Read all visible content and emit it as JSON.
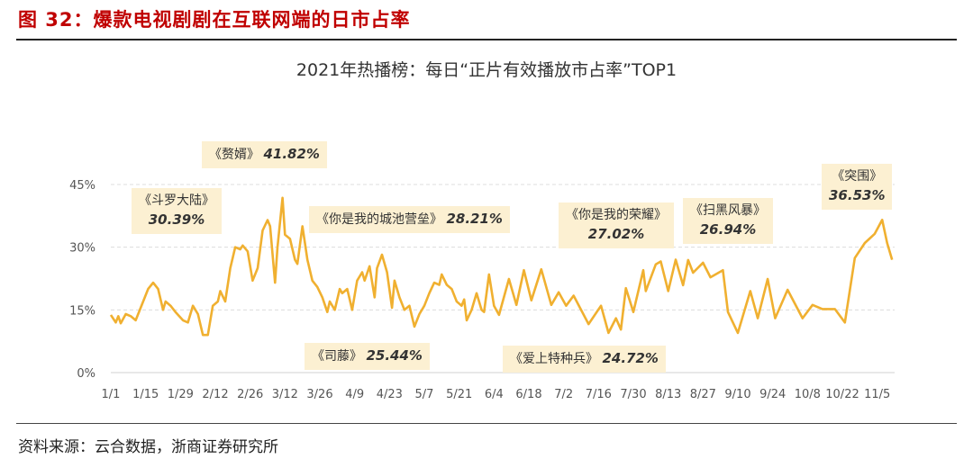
{
  "figure_title": "图 32：爆款电视剧剧在互联网端的日市占率",
  "source": "资料来源：云合数据，浙商证券研究所",
  "chart_data": {
    "type": "line",
    "title": "2021年热播榜：每日“正片有效播放市占率”TOP1",
    "xlabel": "",
    "ylabel": "",
    "ylim": [
      0,
      45
    ],
    "y_ticks": [
      "0%",
      "15%",
      "30%",
      "45%"
    ],
    "y_tick_values": [
      0,
      15,
      30,
      45
    ],
    "x_ticks": [
      "1/1",
      "1/15",
      "1/29",
      "2/12",
      "2/26",
      "3/12",
      "3/26",
      "4/9",
      "4/23",
      "5/7",
      "5/21",
      "6/4",
      "6/18",
      "7/2",
      "7/16",
      "7/30",
      "8/13",
      "8/27",
      "9/10",
      "9/24",
      "10/8",
      "10/22",
      "11/5"
    ],
    "x_tick_days": [
      0,
      14,
      28,
      42,
      56,
      70,
      84,
      98,
      112,
      126,
      140,
      154,
      168,
      182,
      196,
      210,
      224,
      238,
      252,
      266,
      280,
      294,
      308
    ],
    "xlim_days": [
      0,
      315
    ],
    "grid": "horizontal dashed",
    "line_color": "#f0b030",
    "series": [
      {
        "name": "每日正片有效播放市占率TOP1 (%)",
        "days": [
          0,
          2,
          3,
          4,
          6,
          8,
          10,
          13,
          15,
          17,
          19,
          21,
          22,
          24,
          26,
          29,
          31,
          33,
          35,
          37,
          39,
          41,
          43,
          44,
          46,
          48,
          50,
          52,
          53,
          55,
          57,
          59,
          61,
          63,
          64,
          66,
          67,
          69,
          70,
          72,
          74,
          75,
          77,
          79,
          81,
          83,
          85,
          87,
          88,
          90,
          92,
          93,
          95,
          97,
          99,
          101,
          102,
          104,
          106,
          107,
          109,
          111,
          113,
          114,
          116,
          118,
          120,
          122,
          124,
          126,
          128,
          130,
          132,
          133,
          135,
          137,
          139,
          141,
          142,
          143,
          145,
          147,
          149,
          150,
          152,
          154,
          156,
          160,
          163,
          166,
          169,
          173,
          177,
          180,
          183,
          186,
          192,
          197,
          200,
          203,
          205,
          207,
          210,
          214,
          215,
          219,
          221,
          224,
          227,
          230,
          232,
          234,
          238,
          241,
          246,
          248,
          252,
          257,
          260,
          264,
          267,
          272,
          278,
          282,
          286,
          291,
          295,
          299,
          303,
          307,
          310,
          312,
          314
        ],
        "values": [
          13.8,
          12,
          13.5,
          11.8,
          14,
          13.5,
          12.5,
          17,
          20,
          21.5,
          20,
          15,
          17,
          16,
          14.5,
          12.5,
          12,
          16,
          14,
          9,
          9,
          16,
          17,
          19.5,
          17,
          25,
          30,
          29.5,
          30.4,
          29,
          22,
          25,
          34,
          36.5,
          35,
          21.5,
          30,
          41.82,
          33,
          32,
          27,
          26,
          35,
          27,
          22,
          20.5,
          18,
          14.5,
          17,
          15,
          20,
          19,
          20,
          15,
          22,
          24,
          22,
          25.44,
          18,
          25,
          28.21,
          24,
          15.5,
          22,
          18,
          15,
          16,
          11,
          14,
          16,
          19,
          21.5,
          21,
          23.5,
          21,
          20,
          17,
          16,
          17.5,
          12.5,
          15,
          19,
          15,
          14.5,
          23.5,
          16,
          13.8,
          22.4,
          16.2,
          24.5,
          17.3,
          24.72,
          16.2,
          19.2,
          16,
          18.4,
          11.6,
          16,
          9.5,
          13,
          10.3,
          20.2,
          14.5,
          24.5,
          19.5,
          25.9,
          26.6,
          19.5,
          27.02,
          20.9,
          26.94,
          23.9,
          26.3,
          22.8,
          24.5,
          14.5,
          9.5,
          19.5,
          13,
          22.4,
          13,
          19.8,
          13,
          16.2,
          15.2,
          15.2,
          12,
          27.4,
          31,
          33.2,
          36.53,
          31,
          27
        ]
      }
    ],
    "annotations": [
      {
        "drama": "《斗罗大陆》",
        "value": "30.39%"
      },
      {
        "drama": "《赘婿》",
        "value": "41.82%"
      },
      {
        "drama": "《你是我的城池营垒》",
        "value": "28.21%"
      },
      {
        "drama": "《司藤》",
        "value": "25.44%"
      },
      {
        "drama": "《爱上特种兵》",
        "value": "24.72%"
      },
      {
        "drama": "《你是我的荣耀》",
        "value": "27.02%"
      },
      {
        "drama": "《扫黑风暴》",
        "value": "26.94%"
      },
      {
        "drama": "《突围》",
        "value": "36.53%"
      }
    ]
  }
}
